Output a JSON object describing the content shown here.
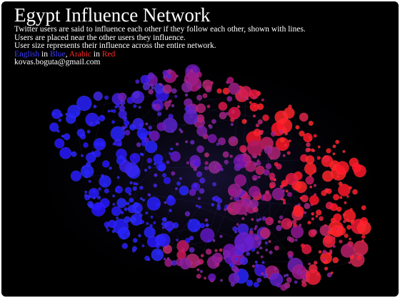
{
  "header": {
    "title": "Egypt Influence Network",
    "lines": [
      "Twitter users are said to influence each other if they follow each other, shown with lines.",
      "Users are placed near the other users they influence.",
      "User size represents their influence across the entire network."
    ],
    "legend": [
      "English",
      "in",
      "Blue",
      ",",
      "Arabic",
      "in",
      "Red"
    ],
    "email": "kovas.boguta@gmail.com"
  }
}
